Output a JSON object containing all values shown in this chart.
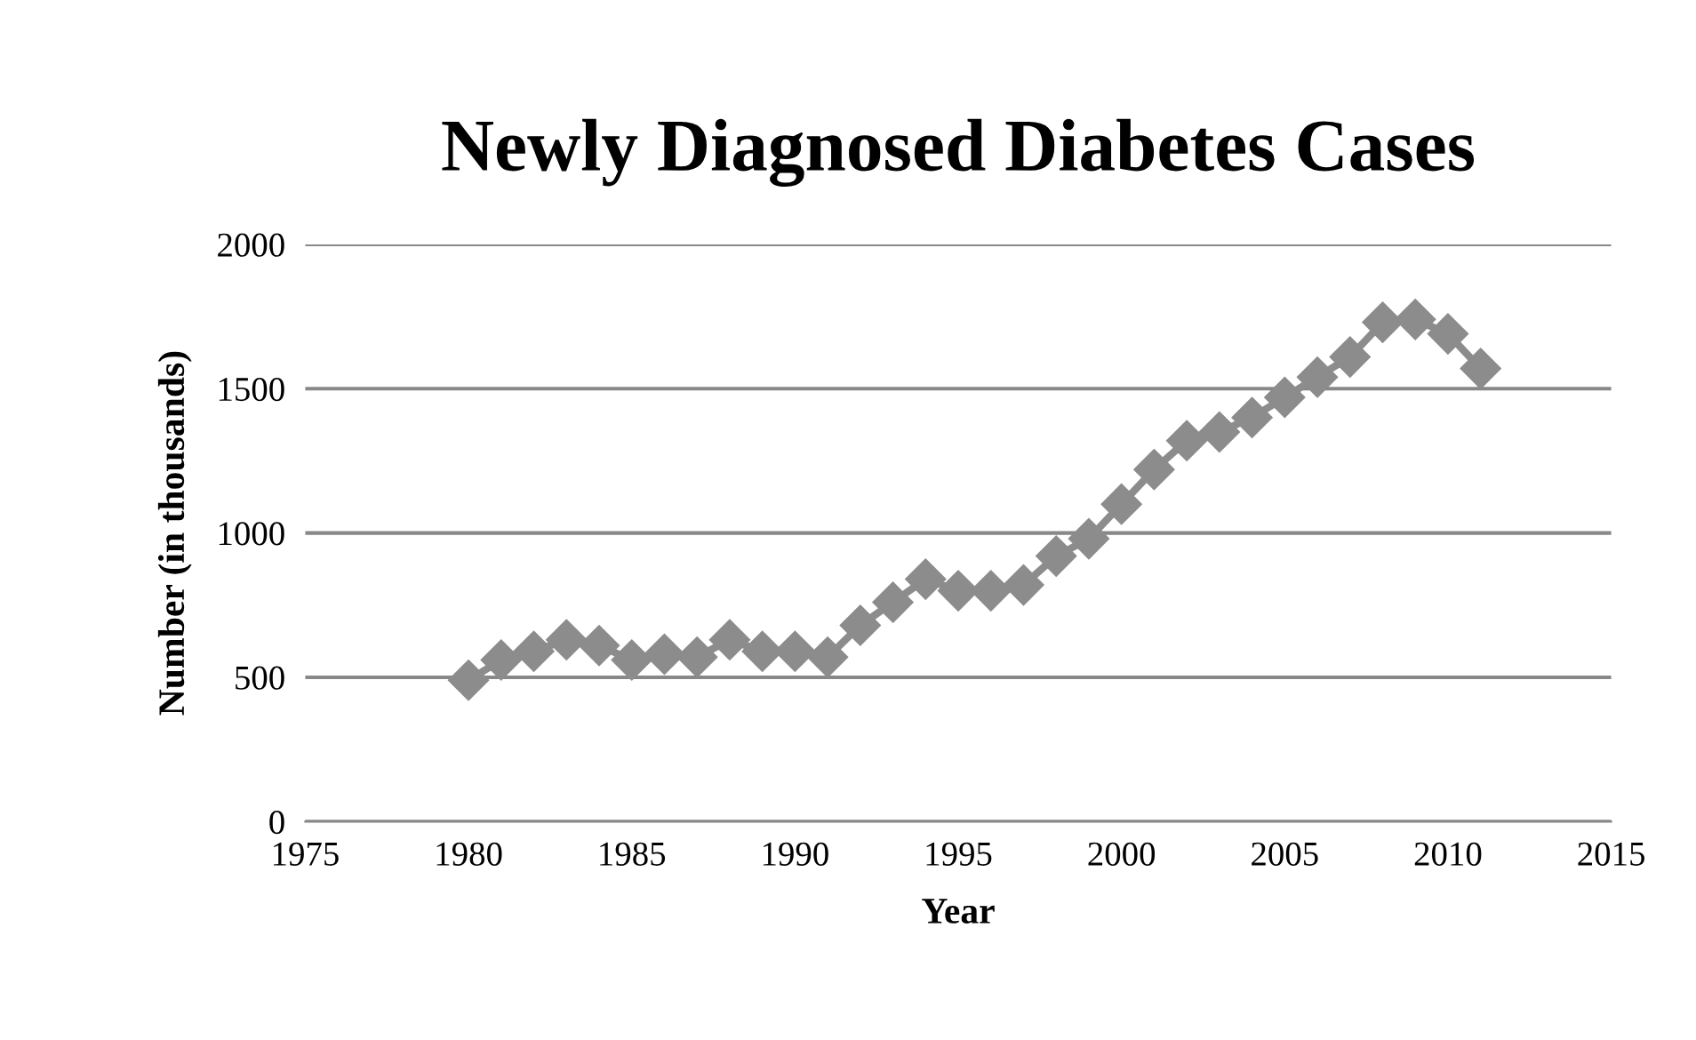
{
  "chart_data": {
    "type": "line",
    "title": "Newly Diagnosed Diabetes Cases",
    "xlabel": "Year",
    "ylabel": "Number (in thousands)",
    "x": [
      1980,
      1981,
      1982,
      1983,
      1984,
      1985,
      1986,
      1987,
      1988,
      1989,
      1990,
      1991,
      1992,
      1993,
      1994,
      1995,
      1996,
      1997,
      1998,
      1999,
      2000,
      2001,
      2002,
      2003,
      2004,
      2005,
      2006,
      2007,
      2008,
      2009,
      2010,
      2011
    ],
    "series": [
      {
        "color": "#8c8c8c",
        "values": [
          490,
          560,
          590,
          630,
          610,
          560,
          580,
          570,
          630,
          590,
          590,
          570,
          680,
          760,
          840,
          800,
          800,
          820,
          920,
          980,
          1100,
          1220,
          1320,
          1350,
          1400,
          1470,
          1540,
          1610,
          1730,
          1740,
          1690,
          1570
        ]
      }
    ],
    "xlim": [
      1975,
      2015
    ],
    "xticks": [
      1975,
      1980,
      1985,
      1990,
      1995,
      2000,
      2005,
      2010,
      2015
    ],
    "ylim": [
      0,
      2000
    ],
    "yticks": [
      0,
      500,
      1000,
      1500,
      2000
    ],
    "grid": "y",
    "marker": "diamond",
    "legend": false
  }
}
